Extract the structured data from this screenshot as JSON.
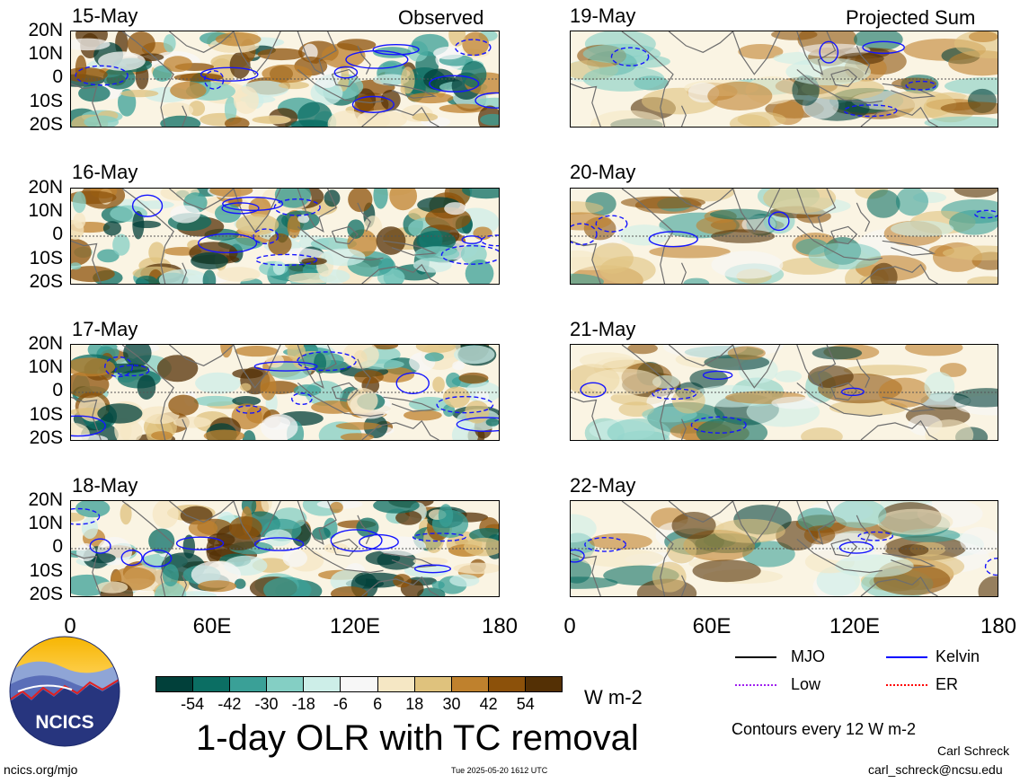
{
  "panels": {
    "left": [
      {
        "date": "15-May",
        "tag": "Observed"
      },
      {
        "date": "16-May",
        "tag": ""
      },
      {
        "date": "17-May",
        "tag": ""
      },
      {
        "date": "18-May",
        "tag": ""
      }
    ],
    "right": [
      {
        "date": "19-May",
        "tag": "Projected Sum"
      },
      {
        "date": "20-May",
        "tag": ""
      },
      {
        "date": "21-May",
        "tag": ""
      },
      {
        "date": "22-May",
        "tag": ""
      }
    ]
  },
  "lat_labels": [
    "20N",
    "10N",
    "0",
    "10S",
    "20S"
  ],
  "lon_labels": [
    "0",
    "60E",
    "120E",
    "180"
  ],
  "colorbar": {
    "colors": [
      "#01403a",
      "#0b6e63",
      "#3aa097",
      "#84cfc4",
      "#cdeee8",
      "#f7f7f7",
      "#f5e7c4",
      "#dfc27d",
      "#bf812d",
      "#8c510a",
      "#543005"
    ],
    "labels": [
      "-54",
      "-42",
      "-30",
      "-18",
      "-6",
      "6",
      "18",
      "30",
      "42",
      "54"
    ],
    "units": "W m-2"
  },
  "title": "1-day OLR with TC removal",
  "legend": {
    "mjo": {
      "label": "MJO",
      "color": "#000000"
    },
    "kelvin": {
      "label": "Kelvin",
      "color": "#0000ff"
    },
    "low": {
      "label": "Low",
      "color": "#a020f0"
    },
    "er": {
      "label": "ER",
      "color": "#ff0000"
    }
  },
  "contour_note": "Contours every 12 W m-2",
  "logo_text": "NCICS",
  "site": "ncics.org/mjo",
  "timestamp": "Tue 2025-05-20 1612 UTC",
  "author": "Carl Schreck",
  "email": "carl_schreck@ncsu.edu"
}
